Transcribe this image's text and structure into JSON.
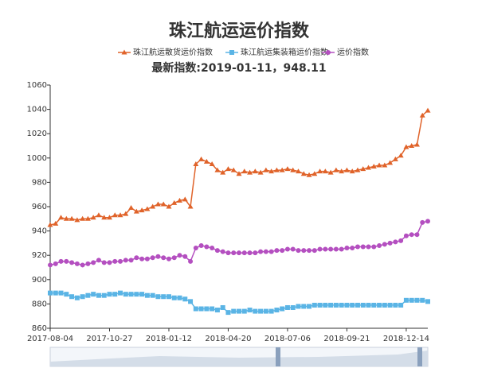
{
  "chart_data": {
    "type": "line",
    "title": "珠江航运运价指数",
    "subtitle": "最新指数:2019-01-11，948.11",
    "categories": [
      "2017-08-04",
      null,
      null,
      null,
      null,
      null,
      null,
      null,
      null,
      null,
      null,
      "2017-10-27",
      null,
      null,
      null,
      null,
      null,
      null,
      null,
      null,
      null,
      null,
      "2018-01-12",
      null,
      null,
      null,
      null,
      null,
      null,
      null,
      null,
      null,
      null,
      "2018-04-20",
      null,
      null,
      null,
      null,
      null,
      null,
      null,
      null,
      null,
      null,
      "2018-07-06",
      null,
      null,
      null,
      null,
      null,
      null,
      null,
      null,
      null,
      null,
      "2018-09-21",
      null,
      null,
      null,
      null,
      null,
      null,
      null,
      null,
      null,
      null,
      "2018-12-14",
      null,
      null,
      null,
      null
    ],
    "series": [
      {
        "name": "珠江航运散货运价指数",
        "color": "#e0632a",
        "marker": "triangle",
        "values": [
          945,
          946,
          951,
          950,
          950,
          949,
          950,
          950,
          951,
          953,
          951,
          951,
          953,
          953,
          954,
          959,
          956,
          957,
          958,
          960,
          962,
          962,
          960,
          963,
          965,
          966,
          960,
          995,
          999,
          997,
          995,
          990,
          988,
          991,
          990,
          987,
          989,
          988,
          989,
          988,
          990,
          989,
          990,
          990,
          991,
          990,
          989,
          987,
          986,
          987,
          989,
          989,
          988,
          990,
          989,
          990,
          989,
          990,
          991,
          992,
          993,
          994,
          994,
          996,
          999,
          1002,
          1009,
          1010,
          1011,
          1035,
          1039
        ]
      },
      {
        "name": "珠江航运集装箱运价指数",
        "color": "#5ab4e5",
        "marker": "square",
        "values": [
          889,
          889,
          889,
          888,
          886,
          885,
          886,
          887,
          888,
          887,
          887,
          888,
          888,
          889,
          888,
          888,
          888,
          888,
          887,
          887,
          886,
          886,
          886,
          885,
          885,
          884,
          882,
          876,
          876,
          876,
          876,
          875,
          877,
          873,
          874,
          874,
          874,
          875,
          874,
          874,
          874,
          874,
          875,
          876,
          877,
          877,
          878,
          878,
          878,
          879,
          879,
          879,
          879,
          879,
          879,
          879,
          879,
          879,
          879,
          879,
          879,
          879,
          879,
          879,
          879,
          879,
          883,
          883,
          883,
          883,
          882
        ]
      },
      {
        "name": "运价指数",
        "color": "#b44fc0",
        "marker": "circle",
        "values": [
          912,
          913,
          915,
          915,
          914,
          913,
          912,
          913,
          914,
          916,
          914,
          914,
          915,
          915,
          916,
          916,
          918,
          917,
          917,
          918,
          919,
          918,
          917,
          918,
          920,
          919,
          915,
          926,
          928,
          927,
          926,
          924,
          923,
          922,
          922,
          922,
          922,
          922,
          922,
          923,
          923,
          923,
          924,
          924,
          925,
          925,
          924,
          924,
          924,
          924,
          925,
          925,
          925,
          925,
          925,
          926,
          926,
          927,
          927,
          927,
          927,
          928,
          929,
          930,
          931,
          932,
          936,
          937,
          937,
          947,
          948
        ]
      }
    ],
    "ylim": [
      860,
      1060
    ],
    "yticks": [
      860,
      880,
      900,
      920,
      940,
      960,
      980,
      1000,
      1020,
      1040,
      1060
    ]
  }
}
